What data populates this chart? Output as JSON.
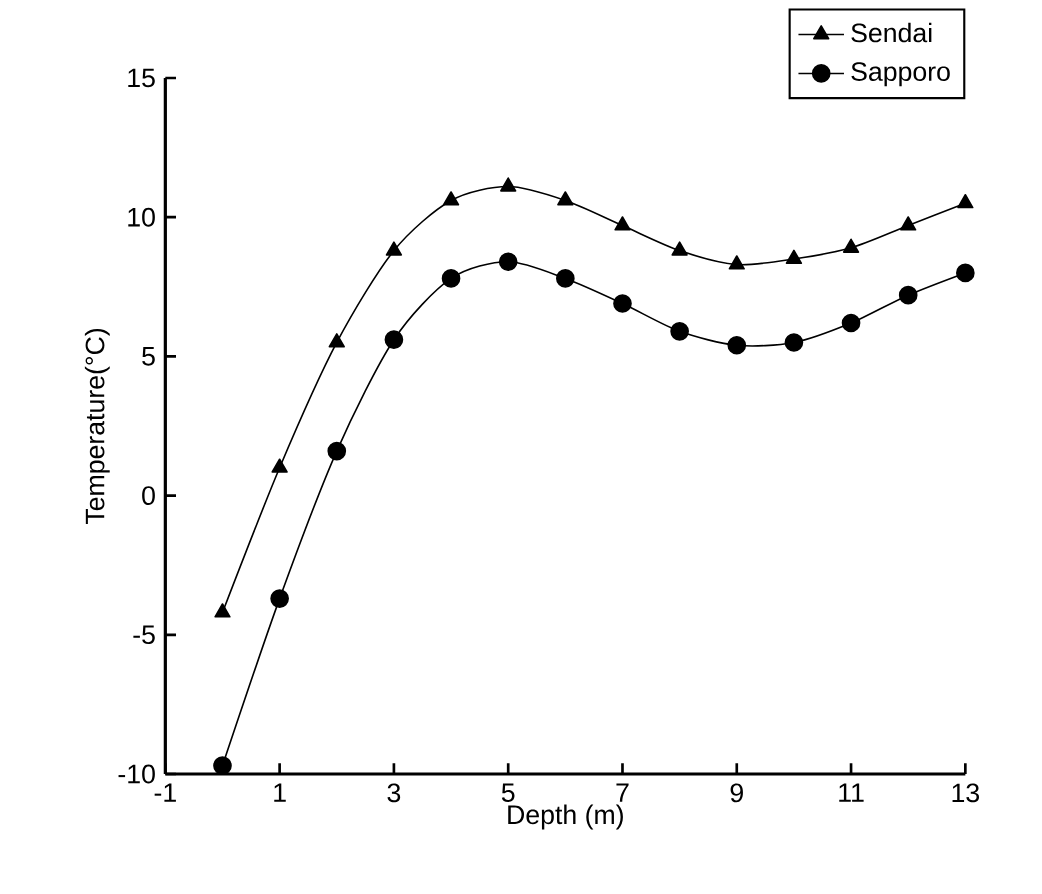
{
  "chart_data": {
    "type": "line",
    "xlabel": "Depth (m)",
    "ylabel": "Temperature(°C)",
    "x": [
      0,
      1,
      2,
      3,
      4,
      5,
      6,
      7,
      8,
      9,
      10,
      11,
      12,
      13
    ],
    "series": [
      {
        "name": "Sendai",
        "color": "#000000",
        "marker": "triangle",
        "values": [
          -4.2,
          1.0,
          5.5,
          8.8,
          10.6,
          11.1,
          10.6,
          9.7,
          8.8,
          8.3,
          8.5,
          8.9,
          9.7,
          10.5
        ]
      },
      {
        "name": "Sapporo",
        "color": "#000000",
        "marker": "circle",
        "values": [
          -9.7,
          -3.7,
          1.6,
          5.6,
          7.8,
          8.4,
          7.8,
          6.9,
          5.9,
          5.4,
          5.5,
          6.2,
          7.2,
          8.0
        ]
      }
    ],
    "xlim": [
      -1,
      13
    ],
    "xticks": [
      -1,
      1,
      3,
      5,
      7,
      9,
      11,
      13
    ],
    "ylim": [
      -10,
      15
    ],
    "yticks": [
      -10,
      -5,
      0,
      5,
      10,
      15
    ],
    "grid": false,
    "legend": "top right",
    "line_style": "solid"
  }
}
